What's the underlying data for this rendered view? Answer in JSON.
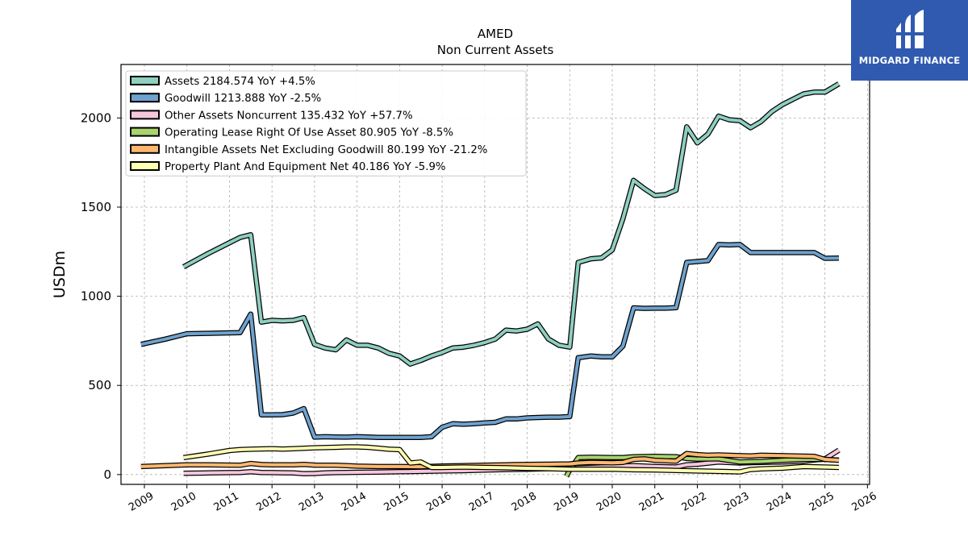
{
  "chart_data": {
    "type": "line",
    "title": "AMED",
    "subtitle": "Non Current  Assets",
    "xlabel": "",
    "ylabel": "USDm",
    "xlim": [
      2008.45,
      2026.05
    ],
    "ylim": [
      -55,
      2300
    ],
    "x_ticks": [
      2009,
      2010,
      2011,
      2012,
      2013,
      2014,
      2015,
      2016,
      2017,
      2018,
      2019,
      2020,
      2021,
      2022,
      2023,
      2024,
      2025,
      2026
    ],
    "y_ticks": [
      0,
      500,
      1000,
      1500,
      2000
    ],
    "grid": true,
    "legend_position": "upper-left",
    "series": [
      {
        "name": "Assets",
        "legend": "Assets  2184.574 YoY +4.5%",
        "color": "#8ecfc0",
        "points": [
          [
            2009.92,
            1165
          ],
          [
            2010.5,
            1240
          ],
          [
            2011.0,
            1300
          ],
          [
            2011.25,
            1330
          ],
          [
            2011.5,
            1345
          ],
          [
            2011.75,
            855
          ],
          [
            2012.0,
            865
          ],
          [
            2012.25,
            862
          ],
          [
            2012.5,
            865
          ],
          [
            2012.75,
            880
          ],
          [
            2013.0,
            730
          ],
          [
            2013.25,
            710
          ],
          [
            2013.5,
            700
          ],
          [
            2013.75,
            755
          ],
          [
            2014.0,
            725
          ],
          [
            2014.25,
            725
          ],
          [
            2014.5,
            710
          ],
          [
            2014.75,
            680
          ],
          [
            2015.0,
            665
          ],
          [
            2015.25,
            620
          ],
          [
            2015.5,
            640
          ],
          [
            2015.75,
            665
          ],
          [
            2016.0,
            685
          ],
          [
            2016.25,
            710
          ],
          [
            2016.5,
            715
          ],
          [
            2016.75,
            725
          ],
          [
            2017.0,
            740
          ],
          [
            2017.25,
            760
          ],
          [
            2017.5,
            810
          ],
          [
            2017.75,
            805
          ],
          [
            2018.0,
            815
          ],
          [
            2018.25,
            845
          ],
          [
            2018.5,
            760
          ],
          [
            2018.75,
            725
          ],
          [
            2019.0,
            715
          ],
          [
            2019.2,
            1190
          ],
          [
            2019.5,
            1210
          ],
          [
            2019.75,
            1215
          ],
          [
            2020.0,
            1260
          ],
          [
            2020.25,
            1435
          ],
          [
            2020.5,
            1650
          ],
          [
            2020.75,
            1605
          ],
          [
            2021.0,
            1565
          ],
          [
            2021.25,
            1570
          ],
          [
            2021.5,
            1595
          ],
          [
            2021.75,
            1950
          ],
          [
            2022.0,
            1860
          ],
          [
            2022.25,
            1910
          ],
          [
            2022.5,
            2010
          ],
          [
            2022.75,
            1990
          ],
          [
            2023.0,
            1985
          ],
          [
            2023.25,
            1945
          ],
          [
            2023.5,
            1980
          ],
          [
            2023.75,
            2035
          ],
          [
            2024.0,
            2075
          ],
          [
            2024.25,
            2105
          ],
          [
            2024.5,
            2135
          ],
          [
            2024.75,
            2145
          ],
          [
            2025.0,
            2145
          ],
          [
            2025.33,
            2192
          ]
        ]
      },
      {
        "name": "Goodwill",
        "legend": "Goodwill  1213.888 YoY -2.5%",
        "color": "#6fa2cf",
        "points": [
          [
            2008.92,
            730
          ],
          [
            2009.5,
            760
          ],
          [
            2010.0,
            790
          ],
          [
            2010.5,
            792
          ],
          [
            2011.0,
            795
          ],
          [
            2011.25,
            796
          ],
          [
            2011.5,
            900
          ],
          [
            2011.75,
            335
          ],
          [
            2012.0,
            335
          ],
          [
            2012.25,
            336
          ],
          [
            2012.5,
            345
          ],
          [
            2012.75,
            370
          ],
          [
            2013.0,
            210
          ],
          [
            2013.25,
            212
          ],
          [
            2013.5,
            211
          ],
          [
            2013.75,
            210
          ],
          [
            2014.0,
            212
          ],
          [
            2014.25,
            211
          ],
          [
            2014.5,
            208
          ],
          [
            2014.75,
            208
          ],
          [
            2015.0,
            208
          ],
          [
            2015.25,
            208
          ],
          [
            2015.5,
            208
          ],
          [
            2015.75,
            212
          ],
          [
            2016.0,
            265
          ],
          [
            2016.25,
            285
          ],
          [
            2016.5,
            282
          ],
          [
            2016.75,
            285
          ],
          [
            2017.0,
            290
          ],
          [
            2017.25,
            293
          ],
          [
            2017.5,
            312
          ],
          [
            2017.75,
            312
          ],
          [
            2018.0,
            318
          ],
          [
            2018.25,
            320
          ],
          [
            2018.5,
            322
          ],
          [
            2018.75,
            322
          ],
          [
            2019.0,
            325
          ],
          [
            2019.2,
            655
          ],
          [
            2019.5,
            665
          ],
          [
            2019.75,
            660
          ],
          [
            2020.0,
            660
          ],
          [
            2020.25,
            720
          ],
          [
            2020.5,
            935
          ],
          [
            2020.75,
            932
          ],
          [
            2021.0,
            933
          ],
          [
            2021.25,
            933
          ],
          [
            2021.5,
            936
          ],
          [
            2021.75,
            1190
          ],
          [
            2022.0,
            1195
          ],
          [
            2022.25,
            1200
          ],
          [
            2022.5,
            1290
          ],
          [
            2022.75,
            1288
          ],
          [
            2023.0,
            1290
          ],
          [
            2023.25,
            1245
          ],
          [
            2023.5,
            1245
          ],
          [
            2023.75,
            1245
          ],
          [
            2024.0,
            1245
          ],
          [
            2024.25,
            1245
          ],
          [
            2024.5,
            1245
          ],
          [
            2024.75,
            1245
          ],
          [
            2025.0,
            1213
          ],
          [
            2025.33,
            1214
          ]
        ]
      },
      {
        "name": "Other Assets Noncurrent",
        "legend": "Other Assets Noncurrent  135.432 YoY +57.7%",
        "color": "#f7c6dd",
        "points": [
          [
            2009.92,
            7
          ],
          [
            2010.5,
            9
          ],
          [
            2011.0,
            11
          ],
          [
            2011.25,
            12
          ],
          [
            2011.5,
            16
          ],
          [
            2011.75,
            12
          ],
          [
            2012.0,
            11
          ],
          [
            2012.25,
            10
          ],
          [
            2012.5,
            9
          ],
          [
            2012.75,
            5
          ],
          [
            2013.0,
            6
          ],
          [
            2013.25,
            9
          ],
          [
            2013.5,
            11
          ],
          [
            2013.75,
            12
          ],
          [
            2014.0,
            13
          ],
          [
            2014.5,
            14
          ],
          [
            2015.0,
            16
          ],
          [
            2015.5,
            18
          ],
          [
            2016.0,
            20
          ],
          [
            2016.5,
            22
          ],
          [
            2017.0,
            25
          ],
          [
            2017.5,
            28
          ],
          [
            2018.0,
            30
          ],
          [
            2018.5,
            33
          ],
          [
            2019.0,
            36
          ],
          [
            2019.5,
            40
          ],
          [
            2020.0,
            45
          ],
          [
            2020.5,
            50
          ],
          [
            2021.0,
            45
          ],
          [
            2021.5,
            42
          ],
          [
            2021.75,
            55
          ],
          [
            2022.0,
            58
          ],
          [
            2022.5,
            70
          ],
          [
            2023.0,
            65
          ],
          [
            2023.5,
            68
          ],
          [
            2024.0,
            70
          ],
          [
            2024.5,
            75
          ],
          [
            2025.0,
            88
          ],
          [
            2025.33,
            137
          ]
        ]
      },
      {
        "name": "Operating Lease Right Of Use Asset",
        "legend": "Operating Lease Right Of Use Asset  80.905 YoY -8.5%",
        "color": "#a9d46f",
        "points": [
          [
            2018.92,
            -10
          ],
          [
            2019.0,
            25
          ],
          [
            2019.2,
            95
          ],
          [
            2019.5,
            97
          ],
          [
            2020.0,
            95
          ],
          [
            2020.25,
            95
          ],
          [
            2020.5,
            100
          ],
          [
            2021.0,
            102
          ],
          [
            2021.5,
            100
          ],
          [
            2021.75,
            90
          ],
          [
            2022.0,
            87
          ],
          [
            2022.5,
            88
          ],
          [
            2023.0,
            70
          ],
          [
            2023.25,
            72
          ],
          [
            2023.5,
            74
          ],
          [
            2024.0,
            80
          ],
          [
            2024.5,
            85
          ],
          [
            2025.0,
            85
          ],
          [
            2025.33,
            81
          ]
        ]
      },
      {
        "name": "Intangible Assets Net Excluding Goodwill",
        "legend": "Intangible Assets Net Excluding Goodwill  80.199 YoY -21.2%",
        "color": "#fdb76f",
        "points": [
          [
            2008.92,
            45
          ],
          [
            2009.5,
            50
          ],
          [
            2010.0,
            55
          ],
          [
            2010.5,
            55
          ],
          [
            2011.0,
            53
          ],
          [
            2011.25,
            52
          ],
          [
            2011.5,
            62
          ],
          [
            2011.75,
            56
          ],
          [
            2012.0,
            55
          ],
          [
            2012.5,
            55
          ],
          [
            2012.75,
            57
          ],
          [
            2013.0,
            53
          ],
          [
            2013.5,
            52
          ],
          [
            2013.75,
            50
          ],
          [
            2014.0,
            47
          ],
          [
            2014.5,
            45
          ],
          [
            2015.0,
            45
          ],
          [
            2015.5,
            44
          ],
          [
            2016.0,
            48
          ],
          [
            2016.5,
            50
          ],
          [
            2017.0,
            52
          ],
          [
            2017.5,
            55
          ],
          [
            2018.0,
            57
          ],
          [
            2018.5,
            58
          ],
          [
            2019.0,
            60
          ],
          [
            2019.2,
            65
          ],
          [
            2019.5,
            68
          ],
          [
            2020.0,
            66
          ],
          [
            2020.25,
            68
          ],
          [
            2020.5,
            85
          ],
          [
            2020.75,
            88
          ],
          [
            2021.0,
            80
          ],
          [
            2021.5,
            75
          ],
          [
            2021.75,
            118
          ],
          [
            2022.0,
            112
          ],
          [
            2022.25,
            108
          ],
          [
            2022.5,
            110
          ],
          [
            2023.0,
            106
          ],
          [
            2023.25,
            104
          ],
          [
            2023.5,
            108
          ],
          [
            2024.0,
            106
          ],
          [
            2024.5,
            103
          ],
          [
            2024.75,
            102
          ],
          [
            2025.0,
            85
          ],
          [
            2025.33,
            80
          ]
        ]
      },
      {
        "name": "Property Plant And Equipment Net",
        "legend": "Property Plant And Equipment Net  40.186 YoY -5.9%",
        "color": "#ffffb3",
        "points": [
          [
            2009.92,
            95
          ],
          [
            2010.5,
            115
          ],
          [
            2011.0,
            135
          ],
          [
            2011.25,
            140
          ],
          [
            2011.5,
            142
          ],
          [
            2012.0,
            145
          ],
          [
            2012.25,
            143
          ],
          [
            2012.5,
            145
          ],
          [
            2013.0,
            150
          ],
          [
            2013.5,
            153
          ],
          [
            2013.75,
            155
          ],
          [
            2014.0,
            155
          ],
          [
            2014.25,
            153
          ],
          [
            2014.5,
            148
          ],
          [
            2014.75,
            142
          ],
          [
            2015.0,
            140
          ],
          [
            2015.25,
            65
          ],
          [
            2015.5,
            70
          ],
          [
            2015.75,
            40
          ],
          [
            2016.0,
            40
          ],
          [
            2016.5,
            42
          ],
          [
            2017.0,
            40
          ],
          [
            2017.5,
            38
          ],
          [
            2018.0,
            35
          ],
          [
            2018.5,
            33
          ],
          [
            2019.0,
            30
          ],
          [
            2019.5,
            30
          ],
          [
            2020.0,
            30
          ],
          [
            2020.5,
            27
          ],
          [
            2021.0,
            26
          ],
          [
            2021.5,
            23
          ],
          [
            2022.0,
            20
          ],
          [
            2022.5,
            18
          ],
          [
            2023.0,
            15
          ],
          [
            2023.25,
            28
          ],
          [
            2023.5,
            32
          ],
          [
            2024.0,
            36
          ],
          [
            2024.5,
            45
          ],
          [
            2025.0,
            42
          ],
          [
            2025.33,
            40
          ]
        ]
      }
    ]
  },
  "branding": {
    "name": "MIDGARD FINANCE",
    "background": "#2f5ab0"
  }
}
